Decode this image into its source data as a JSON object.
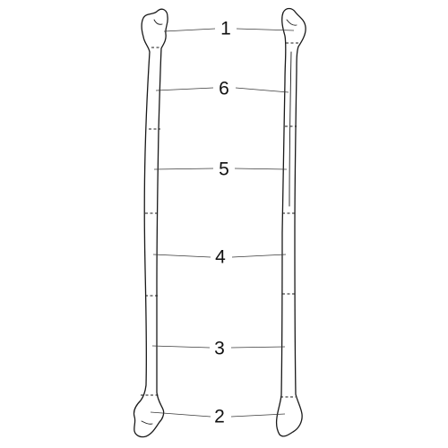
{
  "figure": {
    "zones": [
      {
        "id": "z1",
        "label": "1"
      },
      {
        "id": "z6",
        "label": "6"
      },
      {
        "id": "z5",
        "label": "5"
      },
      {
        "id": "z4",
        "label": "4"
      },
      {
        "id": "z3",
        "label": "3"
      },
      {
        "id": "z2",
        "label": "2"
      }
    ]
  }
}
